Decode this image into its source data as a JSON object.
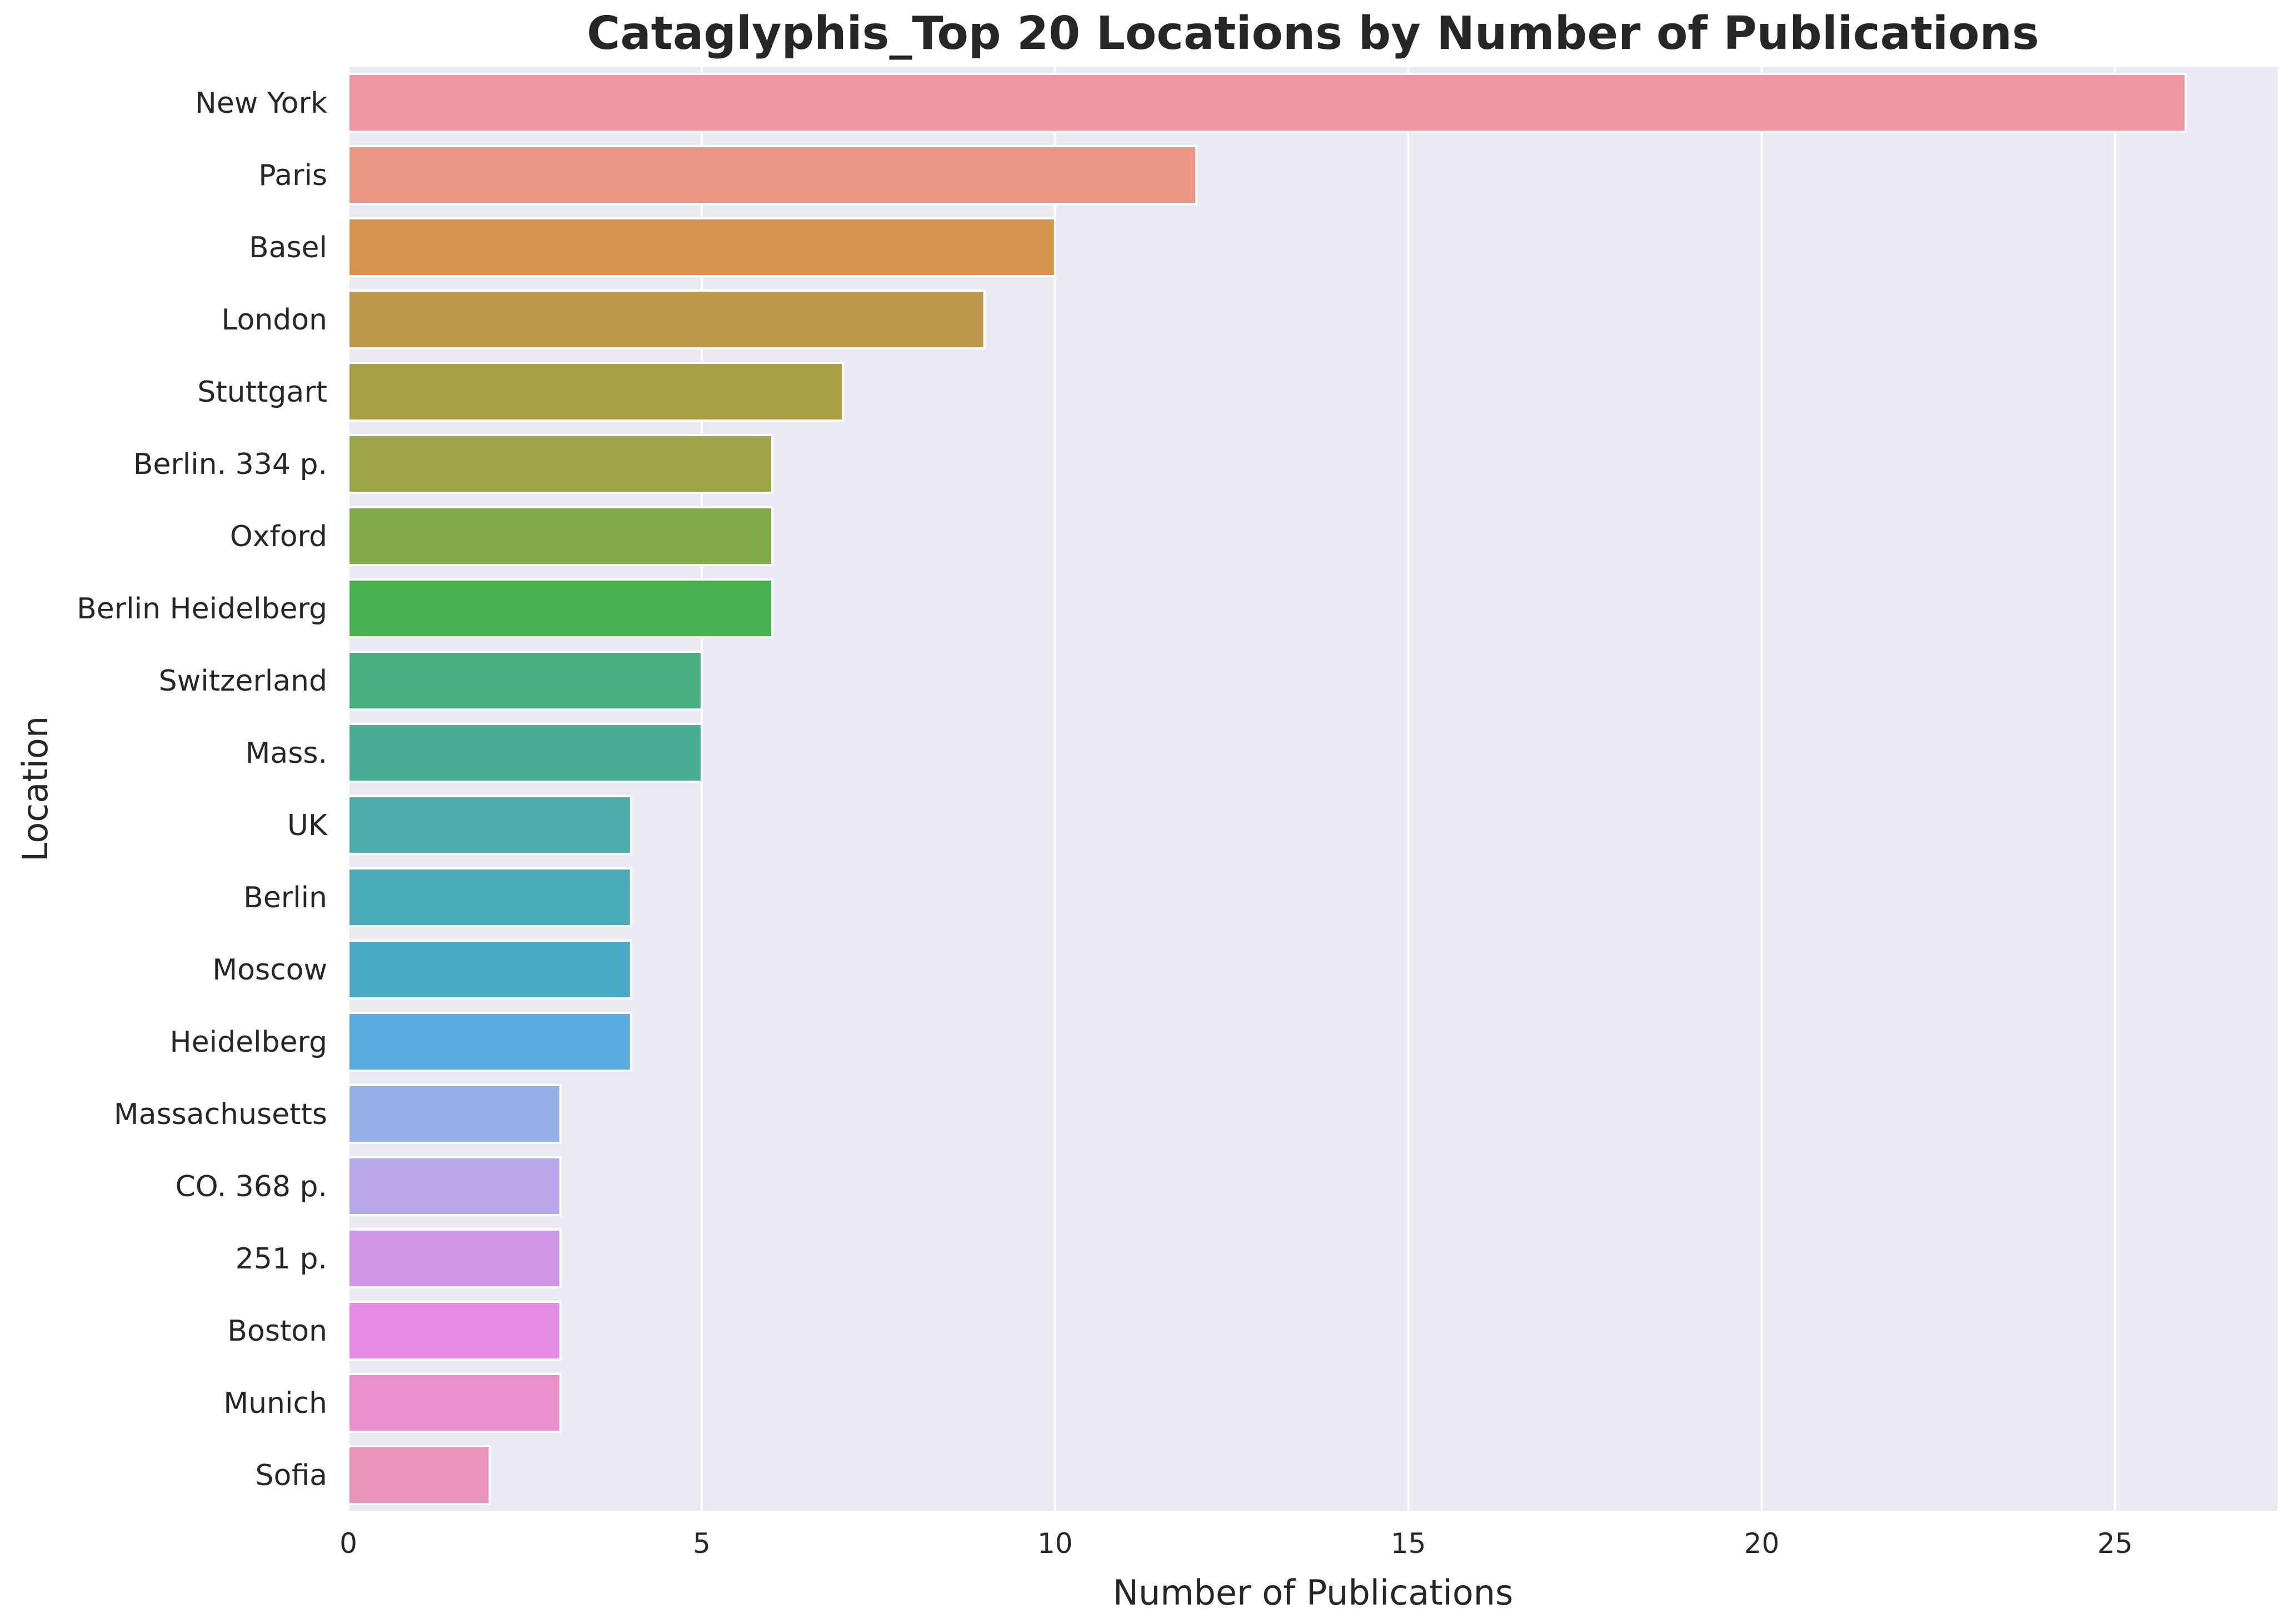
{
  "chart_data": {
    "type": "bar",
    "orientation": "horizontal",
    "title": "Cataglyphis_Top 20 Locations by Number of Publications",
    "xlabel": "Number of Publications",
    "ylabel": "Location",
    "xlim": [
      0,
      27.3
    ],
    "xticks": [
      0,
      5,
      10,
      15,
      20,
      25
    ],
    "xtick_labels": [
      "0",
      "5",
      "10",
      "15",
      "20",
      "25"
    ],
    "grid": true,
    "background": "#eaeaf2",
    "categories": [
      "New York",
      "Paris",
      "Basel",
      "London",
      "Stuttgart",
      "Berlin.  334 p.",
      "Oxford",
      "Berlin Heidelberg",
      "Switzerland",
      "Mass.",
      "UK",
      "Berlin",
      "Moscow",
      "Heidelberg",
      "Massachusetts",
      "CO.  368 p.",
      "251 p.",
      "Boston",
      "Munich",
      "Sofia"
    ],
    "values": [
      26,
      12,
      10,
      9,
      7,
      6,
      6,
      6,
      5,
      5,
      4,
      4,
      4,
      4,
      3,
      3,
      3,
      3,
      3,
      2
    ],
    "colors": [
      "#ed96a2",
      "#e99784",
      "#d5944e",
      "#bd9a4b",
      "#ab9f45",
      "#9aa547",
      "#80aa47",
      "#47b150",
      "#4ab083",
      "#4aae97",
      "#4aaba7",
      "#4aaab5",
      "#4caac7",
      "#56aadd",
      "#95afe8",
      "#b6a6ea",
      "#cf95e7",
      "#e58be5",
      "#ea8fca",
      "#ea95b8"
    ]
  }
}
